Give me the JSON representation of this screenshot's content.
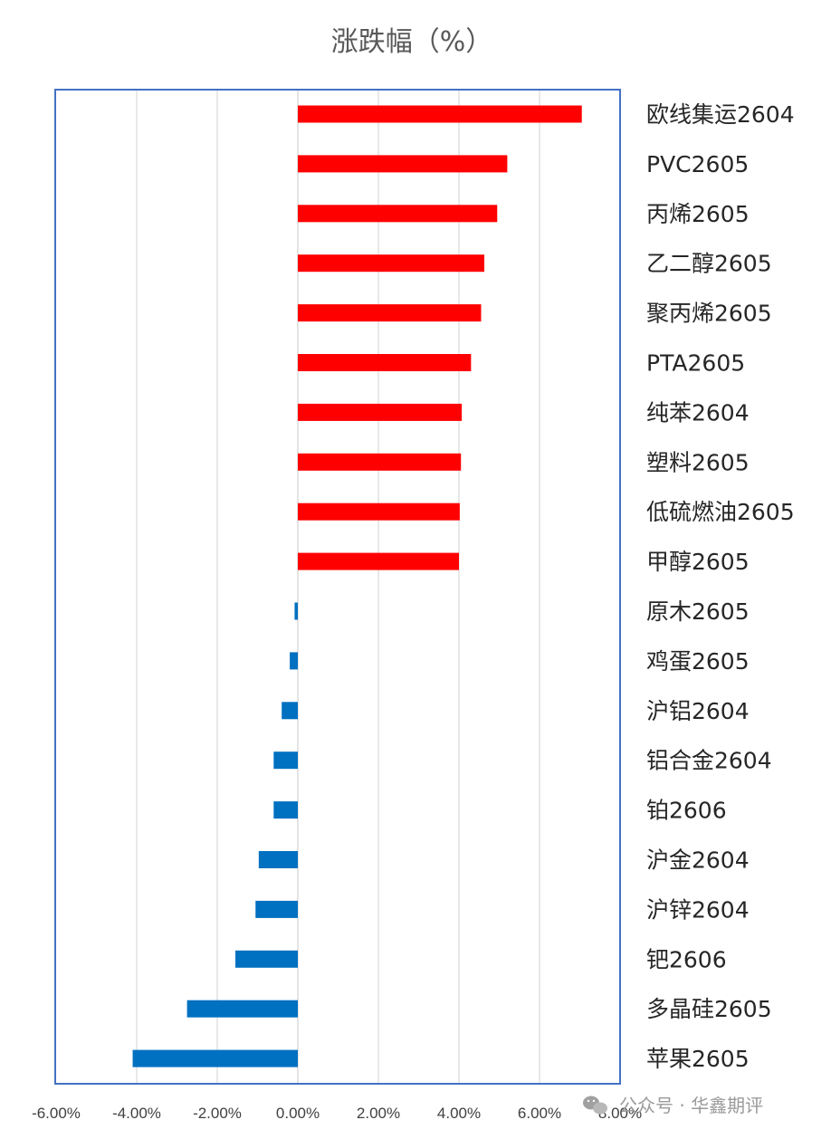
{
  "chart_data": {
    "type": "bar",
    "orientation": "horizontal",
    "title": "涨跌幅（%）",
    "categories": [
      "欧线集运2604",
      "PVC2605",
      "丙烯2605",
      "乙二醇2605",
      "聚丙烯2605",
      "PTA2605",
      "纯苯2604",
      "塑料2605",
      "低硫燃油2605",
      "甲醇2605",
      "原木2605",
      "鸡蛋2605",
      "沪铝2604",
      "铝合金2604",
      "铂2606",
      "沪金2604",
      "沪锌2604",
      "钯2606",
      "多晶硅2605",
      "苹果2605"
    ],
    "values": [
      7.05,
      5.2,
      4.95,
      4.63,
      4.55,
      4.3,
      4.07,
      4.05,
      4.02,
      4.0,
      -0.08,
      -0.2,
      -0.4,
      -0.6,
      -0.6,
      -0.97,
      -1.05,
      -1.55,
      -2.75,
      -4.1
    ],
    "xlim": [
      -6,
      8
    ],
    "xticks": [
      "-6.00%",
      "-4.00%",
      "-2.00%",
      "0.00%",
      "2.00%",
      "4.00%",
      "6.00%",
      "8.00%"
    ],
    "xtick_values": [
      -6,
      -4,
      -2,
      0,
      2,
      4,
      6,
      8
    ],
    "xlabel": "",
    "ylabel": "",
    "grid": true,
    "legend": "none",
    "colors": {
      "positive": "#ff0000",
      "negative": "#0070c0",
      "grid": "#d0d0d0",
      "frame": "#4472c4",
      "zero_line": "#c8c8c8"
    }
  },
  "watermark": {
    "text": "公众号 · 华鑫期评",
    "icon": "wechat-icon"
  }
}
